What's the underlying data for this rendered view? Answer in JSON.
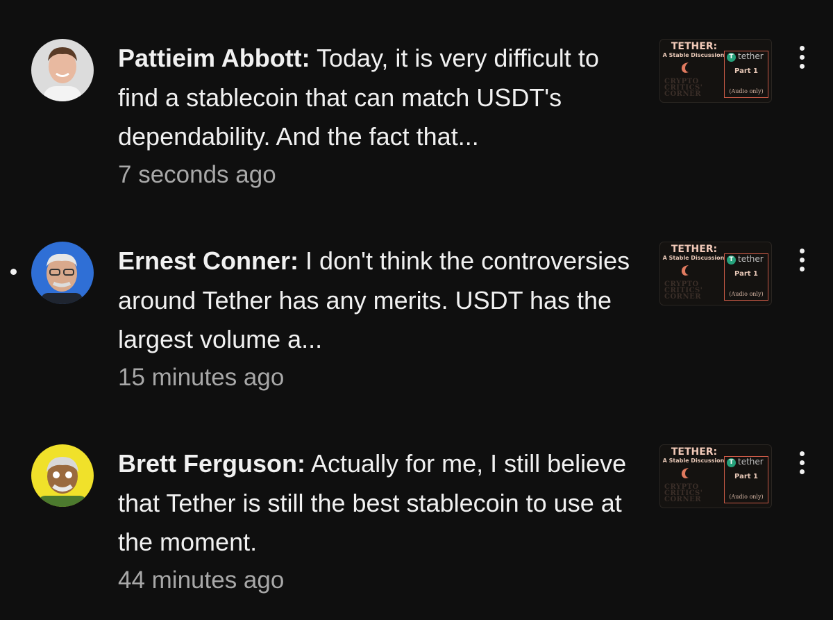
{
  "notifications": [
    {
      "author": "Pattieim Abbott:",
      "text": " Today, it is very difficult to find a stablecoin that can match USDT's dependability. And the fact that...",
      "time": "7 seconds ago",
      "unread": false
    },
    {
      "author": "Ernest Conner:",
      "text": " I don't think the controversies around Tether has any merits.  USDT has the largest volume a...",
      "time": "15 minutes ago",
      "unread": true
    },
    {
      "author": "Brett Ferguson:",
      "text": " Actually for me, I still believe that Tether is still the best stablecoin to use at the moment.",
      "time": "44 minutes ago",
      "unread": false
    }
  ],
  "thumbnail": {
    "title": "TETHER:",
    "subtitle": "A Stable Discussion",
    "brand": "tether",
    "brand_logo": "T",
    "part": "Part 1",
    "audio": "(Audio only)",
    "series": "CRYPTO CRITICS' CORNER"
  },
  "colors": {
    "background": "#0f0f0f",
    "text": "#f1f1f1",
    "secondary": "#a8a8a8",
    "tether_green": "#26a17b",
    "thumb_accent": "#c95a46"
  }
}
